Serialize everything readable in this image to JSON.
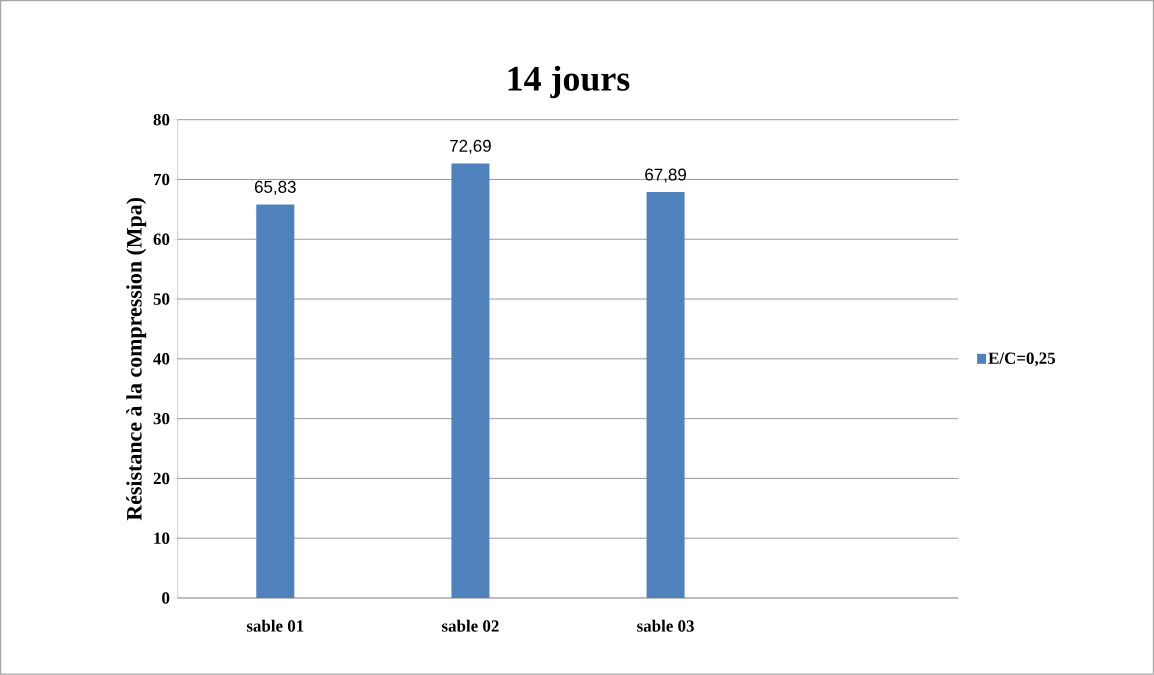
{
  "chart_data": {
    "type": "bar",
    "title": "14 jours",
    "ylabel": "Résistance à la compression  (Mpa)",
    "categories": [
      "sable 01",
      "sable 02",
      "sable 03",
      null
    ],
    "series": [
      {
        "name": "E/C=0,25",
        "color": "#4f81bd",
        "values": [
          65.83,
          72.69,
          67.89,
          null
        ],
        "value_labels": [
          "65,83",
          "72,69",
          "67,89",
          null
        ]
      }
    ],
    "ylim": [
      0,
      80
    ],
    "yticks": [
      0,
      10,
      20,
      30,
      40,
      50,
      60,
      70,
      80
    ],
    "grid": "y",
    "legend": "right"
  }
}
